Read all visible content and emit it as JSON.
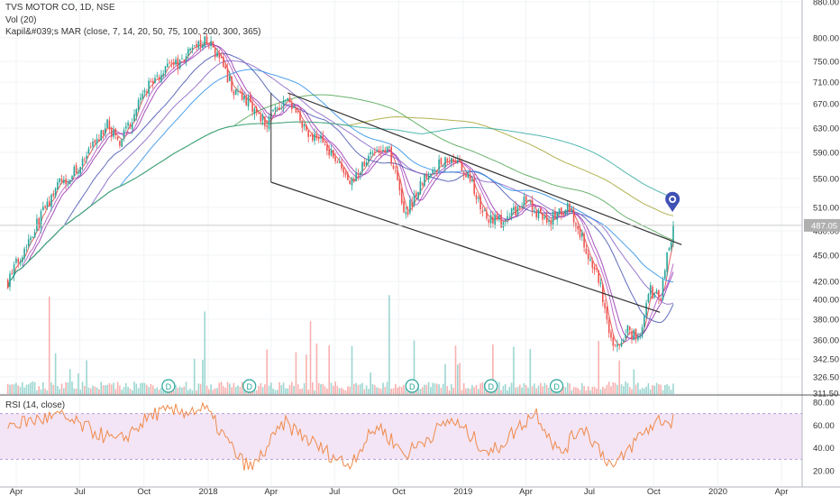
{
  "header": {
    "title": "TVS MOTOR CO, 1D, NSE",
    "vol_label": "Vol (20)",
    "ma_label": "Kapil&#039;s MAR (close, 7, 14, 20, 50, 75, 100, 200, 300, 365)",
    "rsi_label": "RSI (14, close)"
  },
  "colors": {
    "up": "#26a69a",
    "down": "#ef5350",
    "rsi_line": "#f08a4b",
    "rsi_band": "#f3e5f5",
    "marker": "#3f51b5",
    "last_price_bg": "#b0b0b0"
  },
  "chart_data": [
    {
      "type": "candlestick",
      "title": "TVS MOTOR CO, 1D, NSE",
      "x_tick_labels": [
        "Apr",
        "Jul",
        "Oct",
        "2018",
        "Apr",
        "Jul",
        "Oct",
        "2019",
        "Apr",
        "Jul",
        "Oct",
        "2020",
        "Apr"
      ],
      "y_tick_labels": [
        "880.00",
        "800.00",
        "750.00",
        "710.00",
        "670.00",
        "630.00",
        "590.00",
        "550.00",
        "510.00",
        "480.00",
        "450.00",
        "420.00",
        "400.00",
        "380.00",
        "360.00",
        "342.50",
        "326.50",
        "311.50"
      ],
      "last_price": "487.05",
      "price_path": [
        {
          "date": "2017-03-20",
          "close": 420
        },
        {
          "date": "2017-04-25",
          "close": 480
        },
        {
          "date": "2017-06-01",
          "close": 540
        },
        {
          "date": "2017-07-10",
          "close": 580
        },
        {
          "date": "2017-08-10",
          "close": 640
        },
        {
          "date": "2017-08-25",
          "close": 600
        },
        {
          "date": "2017-10-10",
          "close": 710
        },
        {
          "date": "2017-12-01",
          "close": 760
        },
        {
          "date": "2017-12-28",
          "close": 800
        },
        {
          "date": "2018-01-15",
          "close": 760
        },
        {
          "date": "2018-02-05",
          "close": 700
        },
        {
          "date": "2018-03-01",
          "close": 670
        },
        {
          "date": "2018-03-25",
          "close": 640
        },
        {
          "date": "2018-04-20",
          "close": 680
        },
        {
          "date": "2018-05-20",
          "close": 630
        },
        {
          "date": "2018-06-20",
          "close": 600
        },
        {
          "date": "2018-07-25",
          "close": 540
        },
        {
          "date": "2018-08-20",
          "close": 590
        },
        {
          "date": "2018-09-15",
          "close": 600
        },
        {
          "date": "2018-10-10",
          "close": 500
        },
        {
          "date": "2018-11-10",
          "close": 560
        },
        {
          "date": "2018-12-15",
          "close": 580
        },
        {
          "date": "2019-01-10",
          "close": 550
        },
        {
          "date": "2019-02-01",
          "close": 500
        },
        {
          "date": "2019-03-01",
          "close": 490
        },
        {
          "date": "2019-04-01",
          "close": 520
        },
        {
          "date": "2019-05-01",
          "close": 490
        },
        {
          "date": "2019-06-01",
          "close": 510
        },
        {
          "date": "2019-06-25",
          "close": 460
        },
        {
          "date": "2019-07-15",
          "close": 420
        },
        {
          "date": "2019-08-05",
          "close": 350
        },
        {
          "date": "2019-08-25",
          "close": 370
        },
        {
          "date": "2019-09-10",
          "close": 360
        },
        {
          "date": "2019-09-25",
          "close": 410
        },
        {
          "date": "2019-10-10",
          "close": 400
        },
        {
          "date": "2019-10-25",
          "close": 470
        },
        {
          "date": "2019-11-01",
          "close": 487.05
        }
      ],
      "moving_average_periods": [
        7,
        14,
        20,
        50,
        75,
        100,
        200,
        300,
        365
      ],
      "dividend_marker": "D",
      "dividend_dates": [
        "2017-11-05",
        "2018-03-01",
        "2018-10-20",
        "2019-02-10",
        "2019-05-15"
      ],
      "trend_channel": {
        "upper": [
          {
            "date": "2018-04-25",
            "price": 690
          },
          {
            "date": "2019-11-10",
            "price": 463
          }
        ],
        "lower": [
          {
            "date": "2018-04-01",
            "price": 545
          },
          {
            "date": "2019-10-10",
            "price": 387
          }
        ],
        "bounds": [
          {
            "date": "2018-04-01",
            "from": 690,
            "to": 545
          }
        ]
      },
      "volume": {
        "label": "Vol (20)"
      }
    },
    {
      "type": "line",
      "title": "RSI (14, close)",
      "y_tick_labels": [
        "80.00",
        "60.00",
        "40.00",
        "20.00"
      ],
      "ylim": [
        15,
        85
      ],
      "band": [
        30,
        70
      ],
      "series": [
        {
          "values_by_date": [
            {
              "date": "2017-03-20",
              "value": 60
            },
            {
              "date": "2017-06-01",
              "value": 68
            },
            {
              "date": "2017-08-25",
              "value": 45
            },
            {
              "date": "2017-10-15",
              "value": 70
            },
            {
              "date": "2017-12-28",
              "value": 74
            },
            {
              "date": "2018-02-15",
              "value": 30
            },
            {
              "date": "2018-03-05",
              "value": 22
            },
            {
              "date": "2018-04-20",
              "value": 62
            },
            {
              "date": "2018-06-15",
              "value": 38
            },
            {
              "date": "2018-07-20",
              "value": 25
            },
            {
              "date": "2018-09-01",
              "value": 60
            },
            {
              "date": "2018-10-10",
              "value": 34
            },
            {
              "date": "2018-12-15",
              "value": 65
            },
            {
              "date": "2019-02-10",
              "value": 35
            },
            {
              "date": "2019-04-15",
              "value": 72
            },
            {
              "date": "2019-05-20",
              "value": 34
            },
            {
              "date": "2019-06-20",
              "value": 60
            },
            {
              "date": "2019-08-05",
              "value": 22
            },
            {
              "date": "2019-09-10",
              "value": 50
            },
            {
              "date": "2019-10-10",
              "value": 65
            },
            {
              "date": "2019-10-25",
              "value": 62
            },
            {
              "date": "2019-11-01",
              "value": 74
            }
          ]
        }
      ]
    }
  ]
}
